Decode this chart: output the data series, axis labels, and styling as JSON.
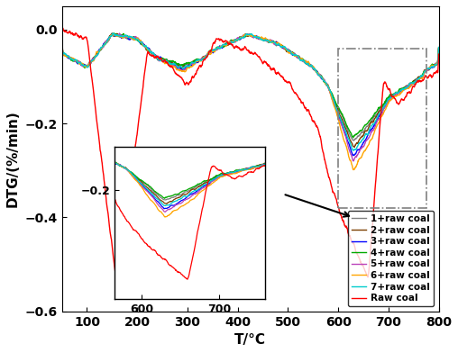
{
  "title": "",
  "xlabel": "T/°C",
  "ylabel": "DTG/(%/min)",
  "xlim": [
    50,
    800
  ],
  "ylim": [
    -0.6,
    0.05
  ],
  "yticks": [
    0.0,
    -0.2,
    -0.4,
    -0.6
  ],
  "xticks": [
    100,
    200,
    300,
    400,
    500,
    600,
    700,
    800
  ],
  "series_colors": {
    "1+raw coal": "#808080",
    "2+raw coal": "#7B3F00",
    "3+raw coal": "#0000FF",
    "4+raw coal": "#00AA00",
    "5+raw coal": "#BB44BB",
    "6+raw coal": "#FFA500",
    "7+raw coal": "#00CCCC",
    "Raw coal": "#FF0000"
  },
  "legend_order": [
    "1+raw coal",
    "2+raw coal",
    "3+raw coal",
    "4+raw coal",
    "5+raw coal",
    "6+raw coal",
    "7+raw coal",
    "Raw coal"
  ],
  "background_color": "#ffffff",
  "figsize": [
    5.08,
    3.92
  ],
  "dpi": 100
}
